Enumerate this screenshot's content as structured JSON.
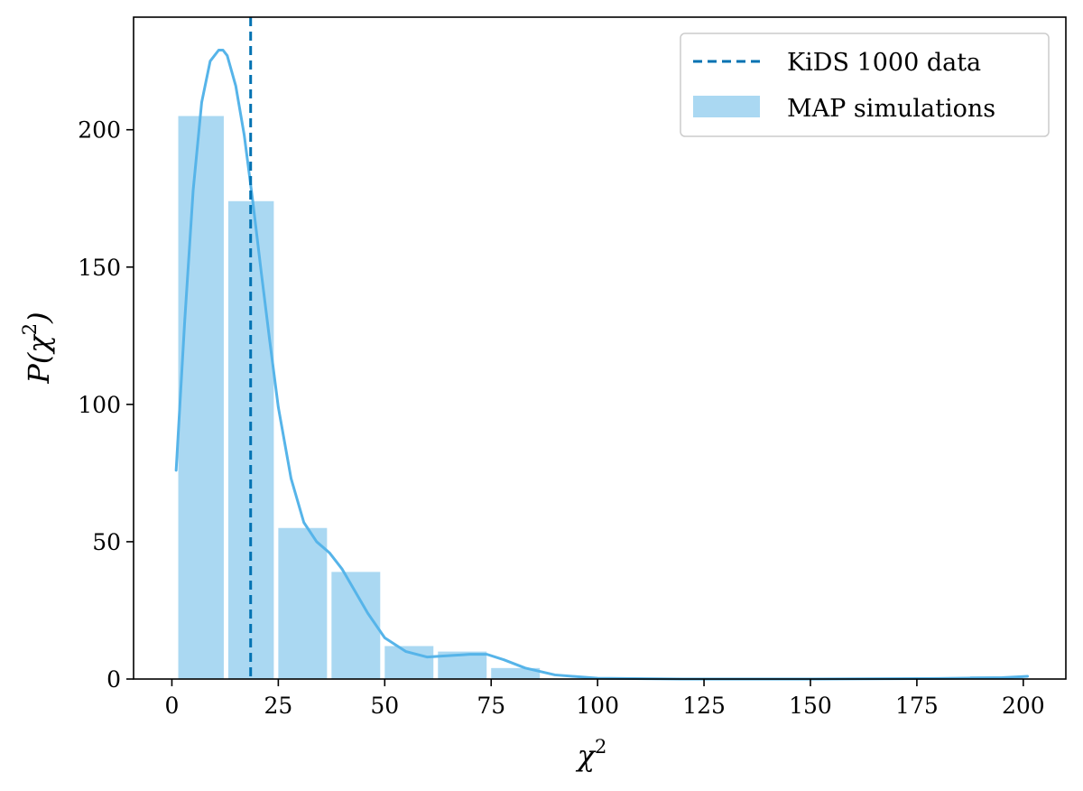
{
  "chart_data": {
    "type": "bar",
    "title": "",
    "xlabel": "χ",
    "xlabel_sup": "2",
    "ylabel_pre": "P(χ",
    "ylabel_sup": "2",
    "ylabel_post": ")",
    "xlim": [
      -9,
      210
    ],
    "ylim": [
      0,
      241
    ],
    "xticks": [
      0,
      25,
      50,
      75,
      100,
      125,
      150,
      175,
      200
    ],
    "yticks": [
      0,
      50,
      100,
      150,
      200
    ],
    "grid": false,
    "legend_position": "top-right",
    "colors": {
      "bars": "#aad8f2",
      "kde": "#56b4e9",
      "data_line": "#0072b2"
    },
    "series": [
      {
        "name": "MAP simulations",
        "type": "histogram",
        "bin_edges": [
          1.5,
          13.25,
          25.0,
          37.5,
          50.0,
          62.5,
          75.0,
          87.5,
          100.0,
          112.5,
          125.0,
          137.5,
          150.0,
          162.5,
          175.0,
          187.5,
          201.0
        ],
        "values": [
          205,
          174,
          55,
          39,
          12,
          10,
          4,
          0,
          0,
          0,
          0,
          0,
          0,
          0,
          0,
          1
        ]
      },
      {
        "name": "",
        "type": "kde_line",
        "x": [
          1,
          3,
          5,
          7,
          9,
          11,
          12,
          13,
          15,
          17,
          19,
          21,
          23,
          25,
          28,
          31,
          34,
          37,
          40,
          43,
          46,
          50,
          55,
          60,
          65,
          70,
          74,
          78,
          83,
          90,
          100,
          120,
          150,
          180,
          195,
          201
        ],
        "y": [
          76,
          130,
          178,
          210,
          225,
          229,
          229,
          227,
          216,
          198,
          174,
          148,
          123,
          99,
          73,
          57,
          50,
          46,
          40,
          32,
          24,
          15,
          10,
          8,
          8.5,
          9,
          9,
          7,
          4,
          1.5,
          0.3,
          0,
          0,
          0.2,
          0.5,
          1
        ]
      },
      {
        "name": "KiDS 1000 data",
        "type": "vline",
        "x": 18.5
      }
    ]
  }
}
